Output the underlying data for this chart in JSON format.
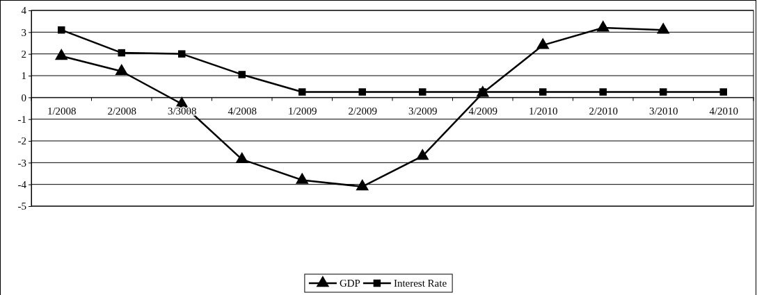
{
  "chart_data": {
    "type": "line",
    "categories": [
      "1/2008",
      "2/2008",
      "3/3008",
      "4/2008",
      "1/2009",
      "2/2009",
      "3/2009",
      "4/2009",
      "1/2010",
      "2/2010",
      "3/2010",
      "4/2010"
    ],
    "series": [
      {
        "name": "GDP",
        "color": "#000000",
        "marker": "triangle",
        "values": [
          1.9,
          1.2,
          -0.3,
          -2.85,
          -3.8,
          -4.1,
          -2.7,
          0.2,
          2.4,
          3.2,
          3.1,
          null
        ]
      },
      {
        "name": "Interest Rate",
        "color": "#000000",
        "marker": "square",
        "values": [
          3.1,
          2.05,
          2.0,
          1.05,
          0.25,
          0.25,
          0.25,
          0.25,
          0.25,
          0.25,
          0.25,
          0.25
        ]
      }
    ],
    "ylim": [
      -5,
      4
    ],
    "yticks": [
      -5,
      -4,
      -3,
      -2,
      -1,
      0,
      1,
      2,
      3,
      4
    ],
    "grid": "y",
    "legend": "bottom",
    "line_style": "solid"
  }
}
